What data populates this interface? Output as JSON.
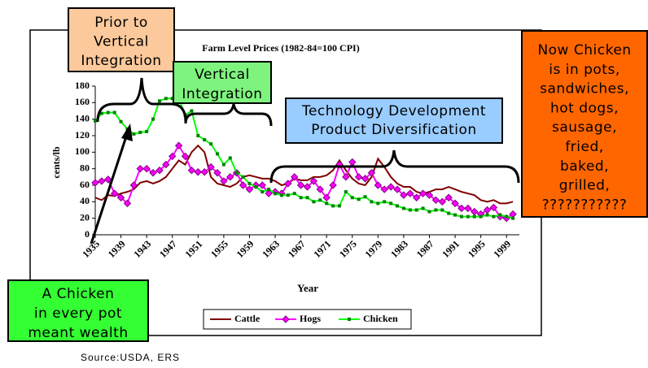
{
  "chart_data": {
    "type": "line",
    "title": "Farm Level Prices (1982-84=100 CPI)",
    "y_label": "cents/lb",
    "x_label": "Year",
    "x": [
      1935,
      1936,
      1937,
      1938,
      1939,
      1940,
      1941,
      1942,
      1943,
      1944,
      1945,
      1946,
      1947,
      1948,
      1949,
      1950,
      1951,
      1952,
      1953,
      1954,
      1955,
      1956,
      1957,
      1958,
      1959,
      1960,
      1961,
      1962,
      1963,
      1964,
      1965,
      1966,
      1967,
      1968,
      1969,
      1970,
      1971,
      1972,
      1973,
      1974,
      1975,
      1976,
      1977,
      1978,
      1979,
      1980,
      1981,
      1982,
      1983,
      1984,
      1985,
      1986,
      1987,
      1988,
      1989,
      1990,
      1991,
      1992,
      1993,
      1994,
      1995,
      1996,
      1997,
      1998,
      1999,
      2000
    ],
    "xlim": [
      1935,
      2001
    ],
    "xticks": [
      1935,
      1939,
      1943,
      1947,
      1951,
      1955,
      1959,
      1963,
      1967,
      1971,
      1975,
      1979,
      1983,
      1987,
      1991,
      1995,
      1999
    ],
    "ylim": [
      0,
      180
    ],
    "yticks": [
      0,
      20,
      40,
      60,
      80,
      100,
      120,
      140,
      160,
      180
    ],
    "series": [
      {
        "name": "Cattle",
        "color": "#800000",
        "marker": "none",
        "values": [
          45,
          42,
          48,
          47,
          50,
          52,
          55,
          63,
          65,
          62,
          65,
          70,
          80,
          90,
          85,
          100,
          108,
          100,
          70,
          62,
          60,
          58,
          62,
          70,
          72,
          70,
          68,
          68,
          65,
          60,
          62,
          68,
          66,
          66,
          70,
          70,
          72,
          78,
          90,
          78,
          68,
          62,
          60,
          70,
          92,
          82,
          70,
          62,
          58,
          58,
          52,
          50,
          52,
          55,
          55,
          58,
          55,
          52,
          50,
          48,
          42,
          40,
          42,
          38,
          38,
          40
        ]
      },
      {
        "name": "Hogs",
        "color": "#ff00ff",
        "marker": "diamond",
        "values": [
          63,
          65,
          67,
          50,
          45,
          38,
          60,
          80,
          80,
          75,
          78,
          85,
          95,
          108,
          95,
          78,
          76,
          76,
          82,
          75,
          65,
          70,
          75,
          60,
          55,
          60,
          60,
          50,
          52,
          50,
          62,
          70,
          60,
          58,
          65,
          55,
          45,
          60,
          85,
          70,
          88,
          70,
          68,
          75,
          60,
          55,
          58,
          55,
          48,
          50,
          45,
          50,
          48,
          42,
          40,
          45,
          38,
          32,
          32,
          28,
          25,
          30,
          33,
          22,
          20,
          25
        ]
      },
      {
        "name": "Chicken",
        "color": "#00ff00",
        "marker": "square",
        "values": [
          138,
          147,
          148,
          148,
          137,
          128,
          122,
          124,
          125,
          140,
          162,
          165,
          165,
          165,
          145,
          150,
          120,
          115,
          110,
          98,
          85,
          93,
          75,
          70,
          62,
          58,
          52,
          55,
          50,
          48,
          48,
          50,
          45,
          45,
          40,
          42,
          38,
          35,
          35,
          52,
          45,
          43,
          46,
          40,
          38,
          40,
          38,
          35,
          32,
          30,
          30,
          32,
          28,
          30,
          30,
          26,
          24,
          22,
          22,
          22,
          22,
          24,
          22,
          24,
          22,
          20
        ]
      }
    ]
  },
  "annotations": [
    {
      "lines": [
        "Prior to",
        "Vertical",
        "Integration"
      ]
    },
    {
      "lines": [
        "Vertical",
        "Integration"
      ]
    },
    {
      "lines": [
        "Technology Development",
        "Product Diversification"
      ]
    },
    {
      "lines": [
        "Now Chicken",
        "is in pots,",
        "sandwiches,",
        "hot dogs,",
        "sausage,",
        "fried,",
        "baked,",
        "grilled,",
        "???????????"
      ]
    },
    {
      "lines": [
        "A Chicken",
        "in every pot",
        "meant wealth"
      ]
    }
  ],
  "source": "Source:USDA, ERS"
}
